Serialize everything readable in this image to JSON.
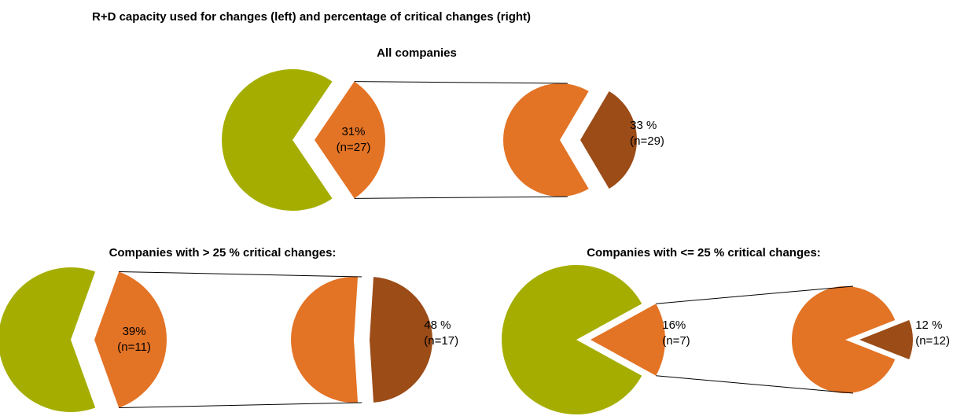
{
  "title": "R+D capacity used for changes (left)  and percentage of critical changes (right)",
  "chart_data": [
    {
      "type": "pie-of-pie",
      "title": "All companies",
      "pies": [
        {
          "slices": [
            {
              "value": 69,
              "color": "#a5ae00"
            },
            {
              "value": 31,
              "label": "31%",
              "n": "(n=27)",
              "color": "#e37325"
            }
          ]
        },
        {
          "slices": [
            {
              "value": 67,
              "color": "#e37325"
            },
            {
              "value": 33,
              "label": "33 %",
              "n": "(n=29)",
              "color": "#9b4c17"
            }
          ]
        }
      ]
    },
    {
      "type": "pie-of-pie",
      "title": "Companies with > 25 % critical changes:",
      "pies": [
        {
          "slices": [
            {
              "value": 61,
              "color": "#a5ae00"
            },
            {
              "value": 39,
              "label": "39%",
              "n": "(n=11)",
              "color": "#e37325"
            }
          ]
        },
        {
          "slices": [
            {
              "value": 52,
              "color": "#e37325"
            },
            {
              "value": 48,
              "label": "48 %",
              "n": "(n=17)",
              "color": "#9b4c17"
            }
          ]
        }
      ]
    },
    {
      "type": "pie-of-pie",
      "title": "Companies with <= 25 % critical changes:",
      "pies": [
        {
          "slices": [
            {
              "value": 84,
              "color": "#a5ae00"
            },
            {
              "value": 16,
              "label": "16%",
              "n": "(n=7)",
              "color": "#e37325"
            }
          ]
        },
        {
          "slices": [
            {
              "value": 88,
              "color": "#e37325"
            },
            {
              "value": 12,
              "label": "12 %",
              "n": "(n=12)",
              "color": "#9b4c17"
            }
          ]
        }
      ]
    }
  ]
}
